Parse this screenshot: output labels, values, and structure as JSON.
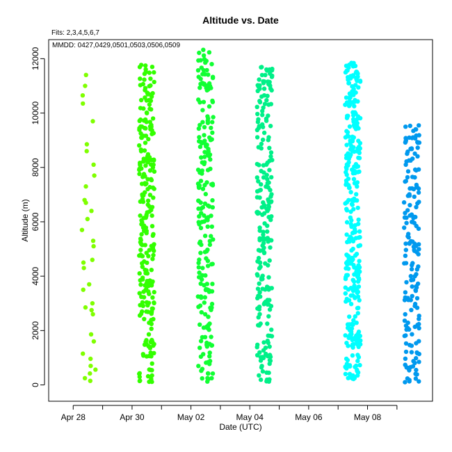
{
  "chart_data": {
    "type": "scatter",
    "title": "Altitude  vs. Date",
    "subtitle_fits": "Fits: 2,3,4,5,6,7",
    "annotation_mmdd": "MMDD: 0427,0429,0501,0503,0506,0509",
    "xlabel": "Date (UTC)",
    "ylabel": "Altitude (m)",
    "x_ticks": [
      {
        "date": "2014-04-28",
        "label": "Apr 28"
      },
      {
        "date": "2014-04-30",
        "label": "Apr 30"
      },
      {
        "date": "2014-05-02",
        "label": "May 02"
      },
      {
        "date": "2014-05-04",
        "label": "May 04"
      },
      {
        "date": "2014-05-06",
        "label": "May 06"
      },
      {
        "date": "2014-05-08",
        "label": "May 08"
      }
    ],
    "x_extra_ticks": [
      "2014-04-29",
      "2014-05-01",
      "2014-05-03",
      "2014-05-05",
      "2014-05-07",
      "2014-05-09"
    ],
    "xlim": [
      "2014-04-27T04:00",
      "2014-05-10T05:00"
    ],
    "ylim": [
      -600,
      12700
    ],
    "y_ticks": [
      0,
      2000,
      4000,
      6000,
      8000,
      10000,
      12000
    ],
    "grid": false,
    "series": [
      {
        "date": "2014-04-28",
        "color": "#7fff00",
        "altitude": [
          150,
          250,
          420,
          560,
          700,
          960,
          1150,
          1600,
          1860,
          2600,
          2750,
          2850,
          3000,
          3500,
          3700,
          4300,
          4500,
          4600,
          5100,
          5300,
          5700,
          6100,
          6400,
          6700,
          6800,
          7300,
          7700,
          8100,
          8600,
          8850,
          9700,
          10350,
          10650,
          11000,
          11400
        ]
      },
      {
        "date": "2014-04-30",
        "color": "#33ff00",
        "altitude_range": [
          50,
          11800
        ],
        "count": 260
      },
      {
        "date": "2014-05-02",
        "color": "#11ff33",
        "altitude_range": [
          100,
          12350
        ],
        "count": 210
      },
      {
        "date": "2014-05-04",
        "color": "#00f088",
        "altitude_range": [
          100,
          12050
        ],
        "count": 230
      },
      {
        "date": "2014-05-07",
        "color": "#00ffff",
        "altitude_range": [
          200,
          11900
        ],
        "count": 320
      },
      {
        "date": "2014-05-09",
        "color": "#0099ee",
        "altitude_range": [
          100,
          9550
        ],
        "count": 170
      }
    ]
  }
}
